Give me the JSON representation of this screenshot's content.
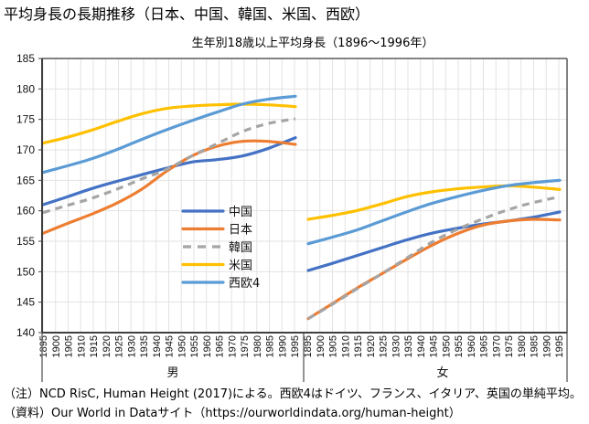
{
  "header": {
    "title": "平均身長の長期推移（日本、中国、韓国、米国、西欧）"
  },
  "notes": {
    "note": "（注）NCD RisC, Human Height (2017)による。西欧4はドイツ、フランス、イタリア、英国の単純平均。",
    "source": "（資料）Our World in Dataサイト（https://ourworldindata.org/human-height）"
  },
  "chart_data": {
    "type": "line",
    "title": "生年別18歳以上平均身長（1896〜1996年）",
    "xlabel": "",
    "ylabel": "",
    "ylim": [
      140,
      185
    ],
    "yticks": [
      140,
      145,
      150,
      155,
      160,
      165,
      170,
      175,
      180,
      185
    ],
    "grid": true,
    "legend_position": "center-left (inside male panel)",
    "groups": [
      {
        "label": "男",
        "years": [
          1896,
          1996
        ]
      },
      {
        "label": "女",
        "years": [
          1896,
          1996
        ]
      }
    ],
    "x_tick_labels": [
      "1895",
      "1900",
      "1905",
      "1910",
      "1915",
      "1920",
      "1925",
      "1930",
      "1935",
      "1940",
      "1945",
      "1950",
      "1955",
      "1960",
      "1965",
      "1970",
      "1975",
      "1980",
      "1985",
      "1990",
      "1995"
    ],
    "x_sample_years": [
      1896,
      1905,
      1915,
      1925,
      1935,
      1945,
      1955,
      1965,
      1975,
      1985,
      1996
    ],
    "series": [
      {
        "name": "中国",
        "color": "#4472C4",
        "dash": false,
        "male": [
          161.0,
          162.2,
          163.6,
          164.8,
          165.9,
          167.0,
          168.0,
          168.4,
          169.0,
          170.2,
          172.0
        ],
        "female": [
          150.2,
          151.3,
          152.6,
          153.9,
          155.2,
          156.3,
          157.1,
          157.8,
          158.3,
          158.9,
          159.8
        ]
      },
      {
        "name": "日本",
        "color": "#ED7D31",
        "dash": false,
        "male": [
          156.3,
          157.8,
          159.4,
          161.2,
          163.5,
          166.5,
          169.0,
          170.6,
          171.4,
          171.4,
          170.9
        ],
        "female": [
          142.3,
          144.6,
          147.2,
          149.6,
          152.0,
          154.3,
          156.2,
          157.6,
          158.3,
          158.6,
          158.5
        ]
      },
      {
        "name": "韓国",
        "color": "#A5A5A5",
        "dash": true,
        "male": [
          159.7,
          160.8,
          162.0,
          163.5,
          165.2,
          166.8,
          169.0,
          171.0,
          173.0,
          174.3,
          175.1
        ],
        "female": [
          142.3,
          144.5,
          147.1,
          149.6,
          152.2,
          154.8,
          156.9,
          158.6,
          160.1,
          161.3,
          162.3
        ]
      },
      {
        "name": "米国",
        "color": "#FFC000",
        "dash": false,
        "male": [
          171.1,
          172.0,
          173.2,
          174.6,
          175.9,
          176.8,
          177.2,
          177.4,
          177.5,
          177.4,
          177.1
        ],
        "female": [
          158.6,
          159.2,
          160.0,
          161.1,
          162.3,
          163.1,
          163.6,
          163.9,
          164.1,
          163.9,
          163.5
        ]
      },
      {
        "name": "西欧4",
        "color": "#5B9BD5",
        "dash": false,
        "male": [
          166.3,
          167.3,
          168.5,
          170.0,
          171.7,
          173.3,
          174.8,
          176.2,
          177.5,
          178.3,
          178.8
        ],
        "female": [
          154.6,
          155.6,
          156.8,
          158.3,
          159.8,
          161.2,
          162.3,
          163.3,
          164.1,
          164.6,
          165.0
        ]
      }
    ]
  }
}
